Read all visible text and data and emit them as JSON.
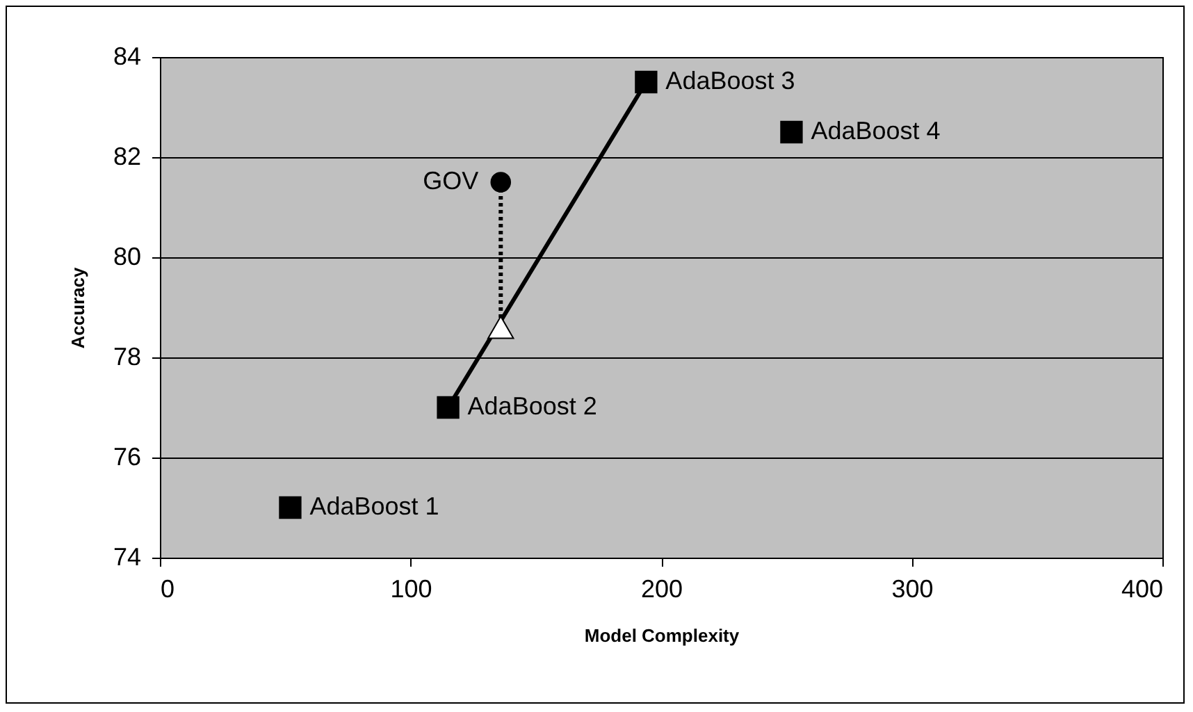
{
  "chart_data": {
    "type": "scatter",
    "xlabel": "Model Complexity",
    "ylabel": "Accuracy",
    "xlim": [
      0,
      400
    ],
    "xticks": [
      0,
      100,
      200,
      300,
      400
    ],
    "ylim": [
      74,
      84
    ],
    "yticks": [
      74,
      76,
      78,
      80,
      82,
      84
    ],
    "grid": "y",
    "series": [
      {
        "type": "line",
        "x": [
          115,
          194
        ],
        "values": [
          77,
          83.5
        ],
        "color": "#000000",
        "marker": "none",
        "line_style": "solid"
      },
      {
        "type": "line",
        "x": [
          136,
          136
        ],
        "values": [
          81.5,
          78.6
        ],
        "color": "#000000",
        "marker": "none",
        "line_style": "dotted"
      },
      {
        "x": [
          52,
          115,
          194,
          252
        ],
        "values": [
          75,
          77,
          83.5,
          82.5
        ],
        "color": "#000000",
        "marker": "square"
      },
      {
        "x": [
          136
        ],
        "values": [
          81.5
        ],
        "color": "#000000",
        "marker": "circle"
      },
      {
        "x": [
          136
        ],
        "values": [
          78.6
        ],
        "color": "#ffffff",
        "marker": "triangle"
      }
    ],
    "annotations": [
      {
        "text": "AdaBoost 1",
        "x": 52,
        "y": 75
      },
      {
        "text": "AdaBoost 2",
        "x": 115,
        "y": 77
      },
      {
        "text": "AdaBoost 3",
        "x": 194,
        "y": 83.5
      },
      {
        "text": "AdaBoost 4",
        "x": 252,
        "y": 82.5
      },
      {
        "text": "GOV",
        "x": 136,
        "y": 81.5
      }
    ]
  }
}
